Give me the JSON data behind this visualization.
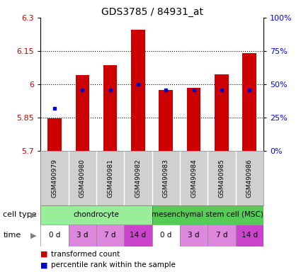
{
  "title": "GDS3785 / 84931_at",
  "samples": [
    "GSM490979",
    "GSM490980",
    "GSM490981",
    "GSM490982",
    "GSM490983",
    "GSM490984",
    "GSM490985",
    "GSM490986"
  ],
  "bar_values": [
    5.848,
    6.04,
    6.085,
    6.245,
    5.975,
    5.985,
    6.045,
    6.14
  ],
  "blue_values": [
    5.893,
    5.975,
    5.975,
    6.0,
    5.975,
    5.975,
    5.975,
    5.975
  ],
  "y_min": 5.7,
  "y_max": 6.3,
  "y_ticks": [
    5.7,
    5.85,
    6.0,
    6.15,
    6.3
  ],
  "y_tick_labels": [
    "5.7",
    "5.85",
    "6",
    "6.15",
    "6.3"
  ],
  "pct_ticks": [
    0,
    25,
    50,
    75,
    100
  ],
  "pct_labels": [
    "0%",
    "25%",
    "50%",
    "75%",
    "100%"
  ],
  "bar_color": "#cc0000",
  "blue_color": "#0000cc",
  "background_color": "#ffffff",
  "cell_types": [
    {
      "label": "chondrocyte",
      "span": [
        0,
        4
      ],
      "color": "#99ee99"
    },
    {
      "label": "mesenchymal stem cell (MSC)",
      "span": [
        4,
        8
      ],
      "color": "#55cc55"
    }
  ],
  "time_labels": [
    "0 d",
    "3 d",
    "7 d",
    "14 d",
    "0 d",
    "3 d",
    "7 d",
    "14 d"
  ],
  "time_colors": [
    "#ffffff",
    "#dd88dd",
    "#dd88dd",
    "#cc44cc",
    "#ffffff",
    "#dd88dd",
    "#dd88dd",
    "#cc44cc"
  ],
  "sample_bg": "#d0d0d0",
  "legend_red_label": "transformed count",
  "legend_blue_label": "percentile rank within the sample",
  "bar_width": 0.5
}
